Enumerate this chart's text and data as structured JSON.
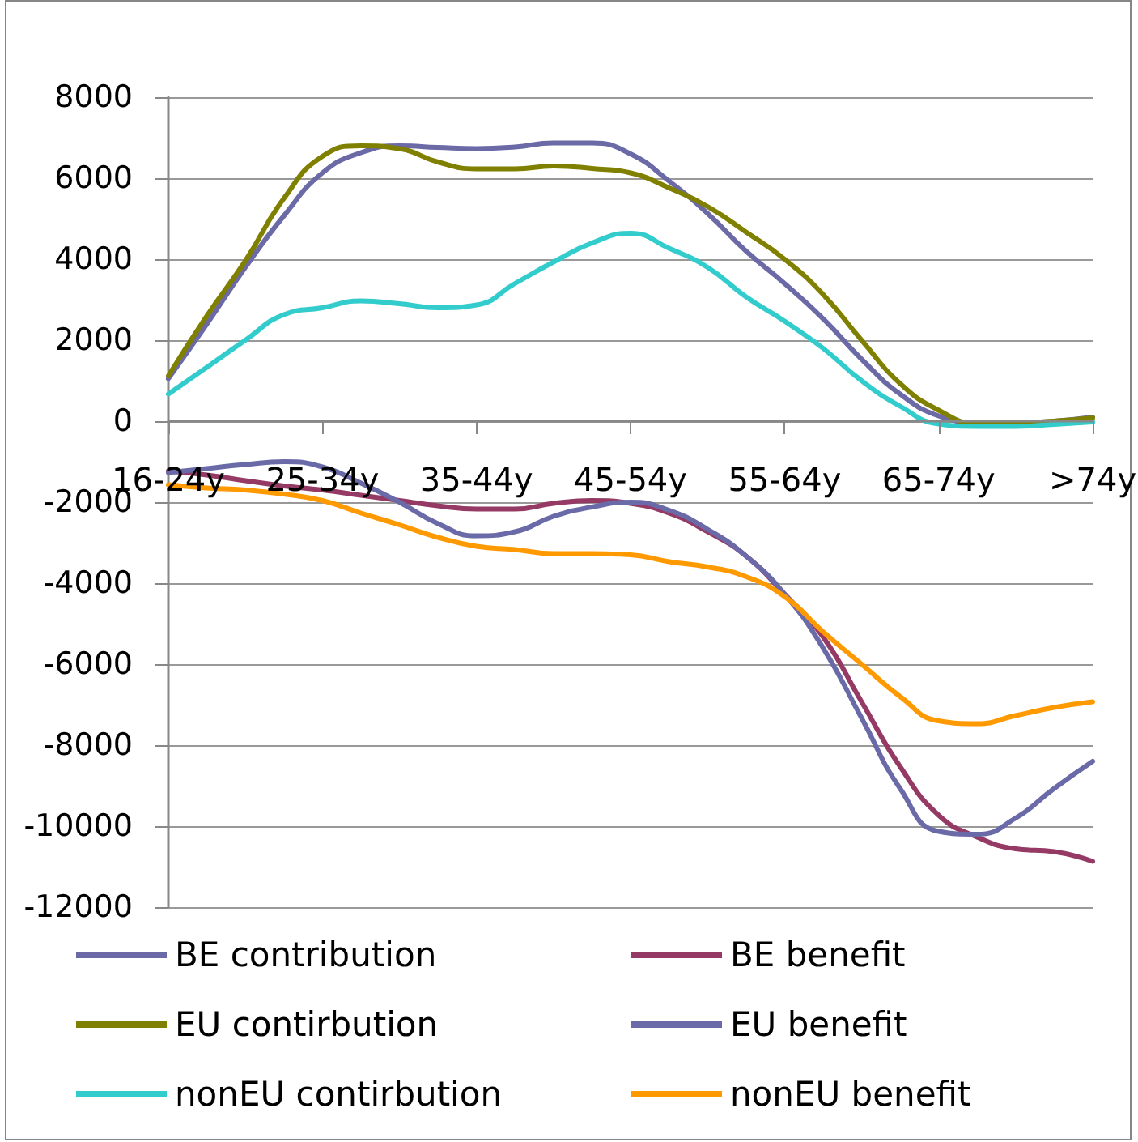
{
  "chart_data": {
    "type": "line",
    "categories": [
      "16-24y",
      null,
      null,
      null,
      "25-34y",
      null,
      null,
      null,
      "35-44y",
      null,
      null,
      null,
      "45-54y",
      null,
      null,
      null,
      "55-64y",
      null,
      null,
      null,
      "65-74y",
      null,
      null,
      null,
      ">74y"
    ],
    "series": [
      {
        "name": "BE contribution",
        "color": "#6b6aa6",
        "values": [
          1050,
          2400,
          3800,
          5070,
          6130,
          6630,
          6800,
          6760,
          6730,
          6770,
          6870,
          6870,
          6600,
          5930,
          5130,
          4200,
          3400,
          2530,
          1530,
          670,
          130,
          -30,
          -40,
          0,
          100
        ]
      },
      {
        "name": "BE benefit",
        "color": "#953a64",
        "values": [
          -1230,
          -1330,
          -1470,
          -1600,
          -1700,
          -1830,
          -1960,
          -2090,
          -2170,
          -2170,
          -2030,
          -1960,
          -2030,
          -2270,
          -2730,
          -3330,
          -4270,
          -5330,
          -6930,
          -8530,
          -9730,
          -10270,
          -10560,
          -10630,
          -10870
        ]
      },
      {
        "name": "EU contirbution",
        "color": "#808000",
        "values": [
          1120,
          2600,
          3960,
          5500,
          6540,
          6800,
          6730,
          6400,
          6230,
          6230,
          6300,
          6240,
          6130,
          5760,
          5300,
          4670,
          4000,
          3130,
          2000,
          930,
          270,
          -50,
          -40,
          0,
          80
        ]
      },
      {
        "name": "EU benefit",
        "color": "#6b6aa8",
        "values": [
          -1270,
          -1170,
          -1070,
          -1000,
          -1130,
          -1530,
          -2000,
          -2530,
          -2830,
          -2730,
          -2350,
          -2120,
          -2000,
          -2200,
          -2670,
          -3330,
          -4270,
          -5600,
          -7330,
          -9070,
          -10130,
          -10200,
          -9800,
          -9070,
          -8400
        ]
      },
      {
        "name": "nonEU contirbution",
        "color": "#33cccc",
        "values": [
          670,
          1330,
          2000,
          2630,
          2800,
          2970,
          2900,
          2800,
          2870,
          3400,
          3930,
          4400,
          4640,
          4270,
          3800,
          3070,
          2470,
          1800,
          1000,
          370,
          -70,
          -130,
          -130,
          -80,
          -20
        ]
      },
      {
        "name": "nonEU benefit",
        "color": "#ff9900",
        "values": [
          -1570,
          -1650,
          -1700,
          -1800,
          -1960,
          -2270,
          -2560,
          -2870,
          -3090,
          -3170,
          -3270,
          -3270,
          -3300,
          -3470,
          -3600,
          -3840,
          -4330,
          -5200,
          -6000,
          -6800,
          -7400,
          -7470,
          -7270,
          -7070,
          -6930
        ]
      }
    ],
    "ylim": [
      -12000,
      8000
    ],
    "yticks": [
      -12000,
      -10000,
      -8000,
      -6000,
      -4000,
      -2000,
      0,
      2000,
      4000,
      6000,
      8000
    ],
    "grid": "y",
    "legend": "bottom"
  }
}
